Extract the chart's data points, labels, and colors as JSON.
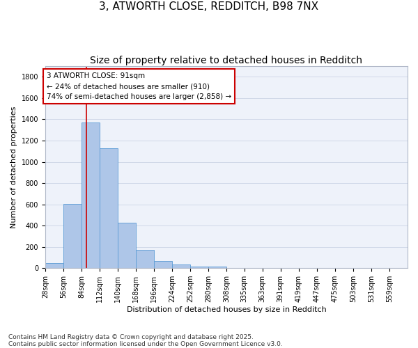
{
  "title1": "3, ATWORTH CLOSE, REDDITCH, B98 7NX",
  "title2": "Size of property relative to detached houses in Redditch",
  "xlabel": "Distribution of detached houses by size in Redditch",
  "ylabel": "Number of detached properties",
  "bin_edges": [
    28,
    56,
    84,
    112,
    140,
    168,
    196,
    224,
    252,
    280,
    308,
    335,
    363,
    391,
    419,
    447,
    475,
    503,
    531,
    559,
    587
  ],
  "bar_heights": [
    50,
    605,
    1370,
    1130,
    425,
    170,
    65,
    35,
    15,
    15,
    0,
    0,
    0,
    0,
    0,
    0,
    0,
    0,
    0,
    0
  ],
  "bar_color": "#aec6e8",
  "bar_edge_color": "#5b9bd5",
  "grid_color": "#d0d8e8",
  "bg_color": "#eef2fa",
  "property_line_x": 91,
  "property_line_color": "#cc0000",
  "annotation_box_color": "#cc0000",
  "annotation_line1": "3 ATWORTH CLOSE: 91sqm",
  "annotation_line2": "← 24% of detached houses are smaller (910)",
  "annotation_line3": "74% of semi-detached houses are larger (2,858) →",
  "ylim": [
    0,
    1900
  ],
  "yticks": [
    0,
    200,
    400,
    600,
    800,
    1000,
    1200,
    1400,
    1600,
    1800
  ],
  "footnote": "Contains HM Land Registry data © Crown copyright and database right 2025.\nContains public sector information licensed under the Open Government Licence v3.0.",
  "title1_fontsize": 11,
  "title2_fontsize": 10,
  "axis_label_fontsize": 8,
  "tick_fontsize": 7,
  "annotation_fontsize": 7.5,
  "footnote_fontsize": 6.5
}
